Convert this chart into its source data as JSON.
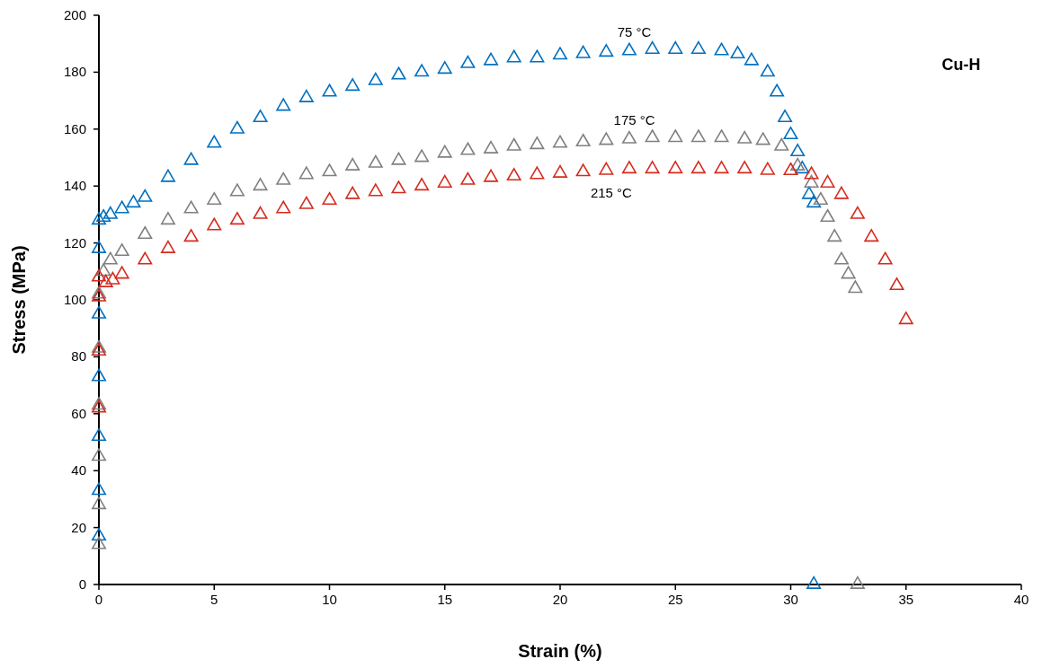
{
  "chart_data": {
    "type": "scatter",
    "xlabel": "Strain (%)",
    "ylabel": "Stress (MPa)",
    "annotations": [
      "Cu-H"
    ],
    "xlim": [
      0,
      40
    ],
    "ylim": [
      0,
      200
    ],
    "xticks": [
      0,
      5,
      10,
      15,
      20,
      25,
      30,
      35,
      40
    ],
    "yticks": [
      0,
      20,
      40,
      60,
      80,
      100,
      120,
      140,
      160,
      180,
      200
    ],
    "grid": false,
    "marker": "triangle",
    "series": [
      {
        "name": "75 °C",
        "color": "#0070c0",
        "x": [
          0,
          0,
          0,
          0,
          0,
          0,
          0,
          0.2,
          0.5,
          1,
          1.5,
          2,
          3,
          4,
          5,
          6,
          7,
          8,
          9,
          10,
          11,
          12,
          13,
          14,
          15,
          16,
          17,
          18,
          19,
          20,
          21,
          22,
          23,
          24,
          25,
          26,
          27,
          27.7,
          28.3,
          29,
          29.4,
          29.75,
          30,
          30.3,
          30.5,
          30.8,
          31,
          31
        ],
        "values": [
          17,
          33,
          52,
          73,
          95,
          118,
          128,
          129,
          130,
          132,
          134,
          136,
          143,
          149,
          155,
          160,
          164,
          168,
          171,
          173,
          175,
          177,
          179,
          180,
          181,
          183,
          184,
          185,
          185,
          186,
          186.5,
          187,
          187.5,
          188,
          188,
          188,
          187.5,
          186.4,
          184,
          180,
          173,
          164,
          158,
          152,
          146,
          137,
          134,
          0
        ]
      },
      {
        "name": "175 °C",
        "color": "#808080",
        "x": [
          0,
          0,
          0,
          0,
          0,
          0,
          0.2,
          0.5,
          1,
          2,
          3,
          4,
          5,
          6,
          7,
          8,
          9,
          10,
          11,
          12,
          13,
          14,
          15,
          16,
          17,
          18,
          19,
          20,
          21,
          22,
          23,
          24,
          25,
          26,
          27,
          28,
          28.8,
          29.6,
          30.3,
          30.9,
          31.3,
          31.6,
          31.9,
          32.2,
          32.5,
          32.8,
          32.9
        ],
        "values": [
          14,
          28,
          45,
          63,
          83,
          102,
          110,
          114,
          117,
          123,
          128,
          132,
          135,
          138,
          140,
          142,
          144,
          145,
          147,
          148,
          149,
          150,
          151.5,
          152.5,
          153,
          154,
          154.5,
          155,
          155.5,
          156,
          156.5,
          157,
          157,
          157,
          157,
          156.5,
          156,
          154,
          147,
          141,
          135,
          129,
          122,
          114,
          109,
          104,
          0
        ]
      },
      {
        "name": "215 °C",
        "color": "#d52b1e",
        "x": [
          0,
          0,
          0,
          0,
          0.3,
          0.6,
          1,
          2,
          3,
          4,
          5,
          6,
          7,
          8,
          9,
          10,
          11,
          12,
          13,
          14,
          15,
          16,
          17,
          18,
          19,
          20,
          21,
          22,
          23,
          24,
          25,
          26,
          27,
          28,
          29,
          30,
          30.9,
          31.6,
          32.2,
          32.9,
          33.5,
          34.1,
          34.6,
          35
        ],
        "values": [
          62,
          82,
          101,
          108,
          106,
          107,
          109,
          114,
          118,
          122,
          126,
          128,
          130,
          132,
          133.5,
          135,
          137,
          138,
          139,
          140,
          141,
          142,
          143,
          143.5,
          144,
          144.5,
          145,
          145.5,
          146,
          146,
          146,
          146,
          146,
          146,
          145.5,
          145.4,
          144,
          141,
          137,
          130,
          122,
          114,
          105,
          93
        ]
      }
    ]
  }
}
